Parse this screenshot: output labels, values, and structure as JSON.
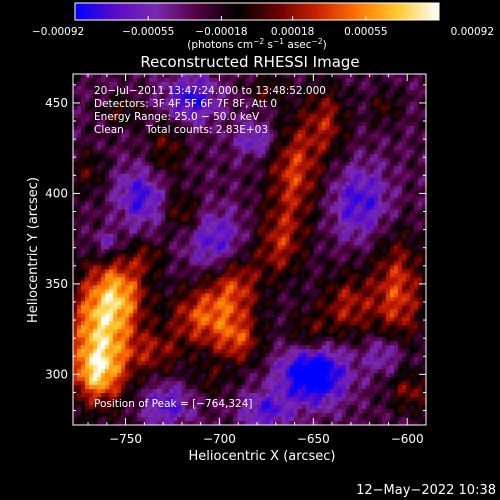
{
  "chart_data": {
    "type": "heatmap",
    "title": "Reconstructed RHESSI Image",
    "xlabel": "Heliocentric X (arcsec)",
    "ylabel": "Heliocentric Y (arcsec)",
    "xlim": [
      -778,
      -590
    ],
    "ylim": [
      272,
      466
    ],
    "x_ticks": [
      -750,
      -700,
      -650,
      -600
    ],
    "x_tick_labels": [
      "−750",
      "−700",
      "−650",
      "−600"
    ],
    "y_ticks": [
      300,
      350,
      400,
      450
    ],
    "y_tick_labels": [
      "300",
      "350",
      "400",
      "450"
    ],
    "colorbar": {
      "range": [
        -0.00092,
        0.00092
      ],
      "tick_values": [
        -0.00092,
        -0.00055,
        -0.00018,
        0.00018,
        0.00055,
        0.00092
      ],
      "tick_labels": [
        "−0.00092",
        "−0.00055",
        "−0.00018",
        "0.00018",
        "0.00055",
        "0.00092"
      ],
      "units_prefix": "(photons cm",
      "units_exp1": "−2",
      "units_mid": " s",
      "units_exp2": "−1",
      "units_mid2": " asec",
      "units_exp3": "−2",
      "units_suffix": ")",
      "colors": [
        "#0000ff",
        "#5a0cc8",
        "#7a2ab0",
        "#550044",
        "#000000",
        "#660000",
        "#cc2200",
        "#ff7700",
        "#ffcc33",
        "#ffffff"
      ]
    },
    "annotations": {
      "time_range": "20−Jul−2011 13:47:24.000 to 13:48:52.000",
      "detectors": "Detectors: 3F 4F 5F 6F 7F 8F, Att 0",
      "energy": "Energy Range: 25.0 − 50.0 keV",
      "method": "Clean",
      "total_counts": "Total counts: 2.83E+03",
      "peak": "Position of Peak = [−764,324]"
    },
    "peak": [
      -764,
      324
    ],
    "bright_regions": [
      {
        "x": -764,
        "y": 322,
        "sx": 12,
        "sy": 24,
        "v": 0.00092
      },
      {
        "x": -752,
        "y": 345,
        "sx": 10,
        "sy": 14,
        "v": 0.0006
      },
      {
        "x": -765,
        "y": 300,
        "sx": 9,
        "sy": 10,
        "v": 0.0005
      },
      {
        "x": -735,
        "y": 312,
        "sx": 11,
        "sy": 9,
        "v": 0.0004
      },
      {
        "x": -710,
        "y": 332,
        "sx": 12,
        "sy": 12,
        "v": 0.00062
      },
      {
        "x": -692,
        "y": 350,
        "sx": 10,
        "sy": 16,
        "v": 0.0006
      },
      {
        "x": -690,
        "y": 318,
        "sx": 9,
        "sy": 9,
        "v": 0.0005
      },
      {
        "x": -668,
        "y": 372,
        "sx": 9,
        "sy": 14,
        "v": 0.00048
      },
      {
        "x": -660,
        "y": 412,
        "sx": 10,
        "sy": 20,
        "v": 0.0006
      },
      {
        "x": -643,
        "y": 440,
        "sx": 8,
        "sy": 14,
        "v": 0.00045
      },
      {
        "x": -653,
        "y": 322,
        "sx": 8,
        "sy": 9,
        "v": 0.00035
      },
      {
        "x": -632,
        "y": 338,
        "sx": 10,
        "sy": 13,
        "v": 0.00048
      },
      {
        "x": -605,
        "y": 345,
        "sx": 10,
        "sy": 22,
        "v": 0.00062
      },
      {
        "x": -598,
        "y": 290,
        "sx": 8,
        "sy": 8,
        "v": 0.00038
      },
      {
        "x": -728,
        "y": 425,
        "sx": 7,
        "sy": 12,
        "v": 0.00035
      },
      {
        "x": -720,
        "y": 390,
        "sx": 6,
        "sy": 8,
        "v": 0.0004
      },
      {
        "x": -770,
        "y": 412,
        "sx": 6,
        "sy": 9,
        "v": 0.0003
      },
      {
        "x": -752,
        "y": 445,
        "sx": 7,
        "sy": 6,
        "v": 0.00028
      },
      {
        "x": -705,
        "y": 297,
        "sx": 7,
        "sy": 7,
        "v": 0.00025
      },
      {
        "x": -675,
        "y": 458,
        "sx": 7,
        "sy": 5,
        "v": 0.0003
      },
      {
        "x": -612,
        "y": 448,
        "sx": 6,
        "sy": 7,
        "v": 0.00028
      },
      {
        "x": -738,
        "y": 365,
        "sx": 7,
        "sy": 6,
        "v": 0.0003
      }
    ],
    "negative_regions": [
      {
        "x": -650,
        "y": 300,
        "sx": 12,
        "sy": 11,
        "v": -0.00092
      },
      {
        "x": -715,
        "y": 452,
        "sx": 10,
        "sy": 9,
        "v": -0.00055
      },
      {
        "x": -700,
        "y": 372,
        "sx": 11,
        "sy": 12,
        "v": -0.00055
      },
      {
        "x": -742,
        "y": 398,
        "sx": 9,
        "sy": 11,
        "v": -0.0005
      },
      {
        "x": -625,
        "y": 395,
        "sx": 11,
        "sy": 14,
        "v": -0.0005
      },
      {
        "x": -728,
        "y": 283,
        "sx": 9,
        "sy": 8,
        "v": -0.00045
      },
      {
        "x": -612,
        "y": 312,
        "sx": 8,
        "sy": 8,
        "v": -0.0004
      },
      {
        "x": -680,
        "y": 430,
        "sx": 8,
        "sy": 7,
        "v": -0.0004
      },
      {
        "x": -760,
        "y": 372,
        "sx": 6,
        "sy": 6,
        "v": -0.00035
      },
      {
        "x": -675,
        "y": 280,
        "sx": 9,
        "sy": 7,
        "v": -0.00045
      }
    ],
    "grid": false,
    "legend": "none"
  },
  "footer": {
    "date": "12−May−2022 10:38"
  }
}
